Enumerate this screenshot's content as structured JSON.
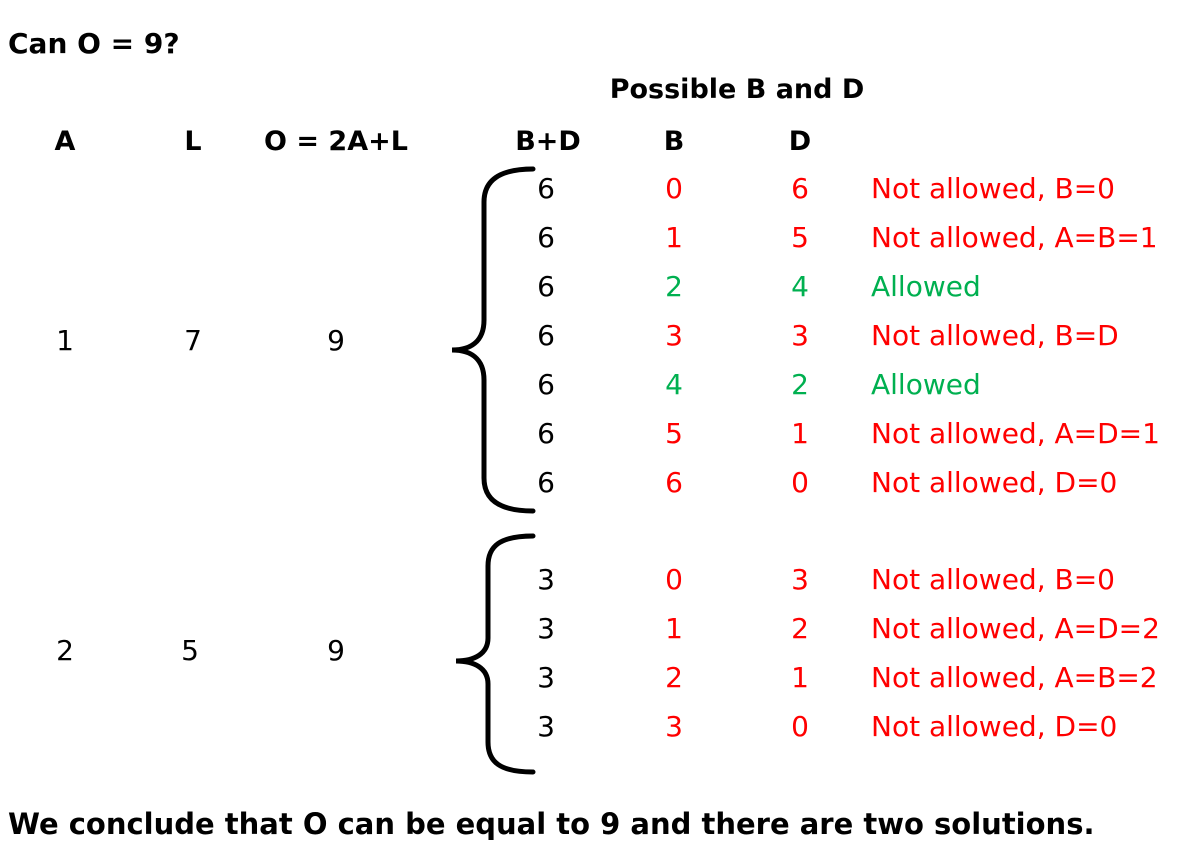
{
  "title": "Can O = 9?",
  "possible_header": "Possible B and D",
  "columns": {
    "a": "A",
    "l": "L",
    "o": "O = 2A+L",
    "bd": "B+D",
    "b": "B",
    "d": "D"
  },
  "groups": [
    {
      "a": "1",
      "l": "7",
      "o": "9",
      "rows": [
        {
          "bd": "6",
          "b": "0",
          "d": "6",
          "note": "Not allowed, B=0",
          "status": "red"
        },
        {
          "bd": "6",
          "b": "1",
          "d": "5",
          "note": "Not allowed, A=B=1",
          "status": "red"
        },
        {
          "bd": "6",
          "b": "2",
          "d": "4",
          "note": "Allowed",
          "status": "green"
        },
        {
          "bd": "6",
          "b": "3",
          "d": "3",
          "note": "Not allowed, B=D",
          "status": "red"
        },
        {
          "bd": "6",
          "b": "4",
          "d": "2",
          "note": "Allowed",
          "status": "green"
        },
        {
          "bd": "6",
          "b": "5",
          "d": "1",
          "note": "Not allowed, A=D=1",
          "status": "red"
        },
        {
          "bd": "6",
          "b": "6",
          "d": "0",
          "note": "Not allowed, D=0",
          "status": "red"
        }
      ]
    },
    {
      "a": "2",
      "l": "5",
      "o": "9",
      "rows": [
        {
          "bd": "3",
          "b": "0",
          "d": "3",
          "note": "Not allowed, B=0",
          "status": "red"
        },
        {
          "bd": "3",
          "b": "1",
          "d": "2",
          "note": "Not allowed, A=D=2",
          "status": "red"
        },
        {
          "bd": "3",
          "b": "2",
          "d": "1",
          "note": "Not allowed, A=B=2",
          "status": "red"
        },
        {
          "bd": "3",
          "b": "3",
          "d": "0",
          "note": "Not allowed, D=0",
          "status": "red"
        }
      ]
    }
  ],
  "conclusion": "We conclude that O can be equal to 9 and there are two solutions.",
  "colors": {
    "not_allowed": "#ff0000",
    "allowed": "#00b050",
    "text": "#000000"
  }
}
